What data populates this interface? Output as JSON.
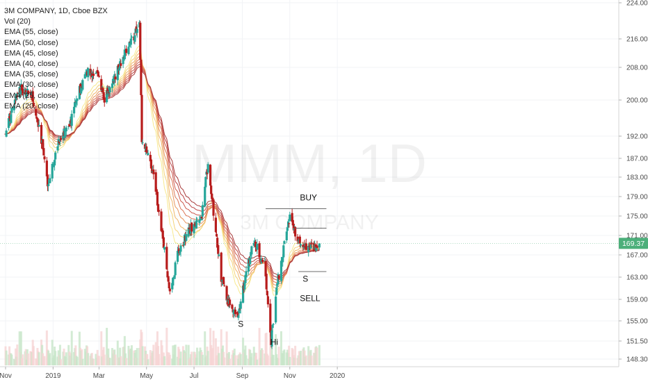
{
  "legend": {
    "title": "3M COMPANY, 1D, Cboe BZX",
    "items": [
      "Vol (20)",
      "EMA (55, close)",
      "EMA (50, close)",
      "EMA (45, close)",
      "EMA (40, close)",
      "EMA (35, close)",
      "EMA (30, close)",
      "EMA (25, close)",
      "EMA (20, close)"
    ]
  },
  "watermark": {
    "symbol": "MMM, 1D",
    "name": "3M COMPANY"
  },
  "price_label": "169.37",
  "colors": {
    "up": "#26a69a",
    "down": "#b71c1c",
    "price_tag": "#4caf7a",
    "ema_fast": "#f5e67a",
    "ema_slow": "#b23a3a",
    "volume": "#c8e6c9"
  },
  "chart_data": {
    "type": "candlestick",
    "symbol": "3M COMPANY",
    "interval": "1D",
    "exchange": "Cboe BZX",
    "y_axis": {
      "side": "right",
      "ticks": [
        224.0,
        216.0,
        208.0,
        200.0,
        192.0,
        187.0,
        183.0,
        179.0,
        175.0,
        171.0,
        167.0,
        163.0,
        159.0,
        155.0,
        151.5,
        148.3
      ],
      "scale": "log"
    },
    "x_axis": {
      "ticks": [
        "Nov",
        "2019",
        "Mar",
        "May",
        "Jul",
        "Sep",
        "Nov",
        "2020"
      ]
    },
    "last_price": 169.37,
    "price_path": [
      {
        "date": "2018-11-01",
        "close": 193
      },
      {
        "date": "2018-11-20",
        "close": 203
      },
      {
        "date": "2018-12-05",
        "close": 201
      },
      {
        "date": "2018-12-18",
        "close": 190
      },
      {
        "date": "2018-12-26",
        "close": 181
      },
      {
        "date": "2019-01-08",
        "close": 191
      },
      {
        "date": "2019-01-22",
        "close": 194
      },
      {
        "date": "2019-02-01",
        "close": 201
      },
      {
        "date": "2019-02-15",
        "close": 207
      },
      {
        "date": "2019-03-01",
        "close": 206
      },
      {
        "date": "2019-03-08",
        "close": 200
      },
      {
        "date": "2019-03-22",
        "close": 206
      },
      {
        "date": "2019-04-05",
        "close": 213
      },
      {
        "date": "2019-04-22",
        "close": 219
      },
      {
        "date": "2019-04-25",
        "close": 191
      },
      {
        "date": "2019-05-10",
        "close": 184
      },
      {
        "date": "2019-05-20",
        "close": 172
      },
      {
        "date": "2019-05-31",
        "close": 160
      },
      {
        "date": "2019-06-10",
        "close": 167
      },
      {
        "date": "2019-06-24",
        "close": 172
      },
      {
        "date": "2019-07-10",
        "close": 174
      },
      {
        "date": "2019-07-19",
        "close": 186
      },
      {
        "date": "2019-07-26",
        "close": 176
      },
      {
        "date": "2019-08-05",
        "close": 163
      },
      {
        "date": "2019-08-15",
        "close": 158
      },
      {
        "date": "2019-08-26",
        "close": 156
      },
      {
        "date": "2019-09-05",
        "close": 163
      },
      {
        "date": "2019-09-16",
        "close": 170
      },
      {
        "date": "2019-09-30",
        "close": 165
      },
      {
        "date": "2019-10-08",
        "close": 151
      },
      {
        "date": "2019-10-15",
        "close": 161
      },
      {
        "date": "2019-10-24",
        "close": 168
      },
      {
        "date": "2019-11-01",
        "close": 175
      },
      {
        "date": "2019-11-12",
        "close": 170
      },
      {
        "date": "2019-11-26",
        "close": 168
      },
      {
        "date": "2019-12-09",
        "close": 169.37
      }
    ],
    "horizontal_lines": [
      {
        "price": 176.5,
        "from": "2019-10-01",
        "to": "2019-12-18"
      },
      {
        "price": 172.5,
        "from": "2019-11-08",
        "to": "2019-12-18"
      },
      {
        "price": 164.0,
        "from": "2019-11-12",
        "to": "2019-12-18"
      }
    ],
    "annotations": [
      {
        "text": "BUY",
        "date": "2019-11-25",
        "price": 178.2
      },
      {
        "text": "S",
        "date": "2019-11-21",
        "price": 162.2
      },
      {
        "text": "SELL",
        "date": "2019-11-27",
        "price": 158.7
      },
      {
        "text": "S",
        "date": "2019-08-30",
        "price": 154.0
      },
      {
        "text": "Hi",
        "date": "2019-10-12",
        "price": 150.8
      }
    ]
  }
}
